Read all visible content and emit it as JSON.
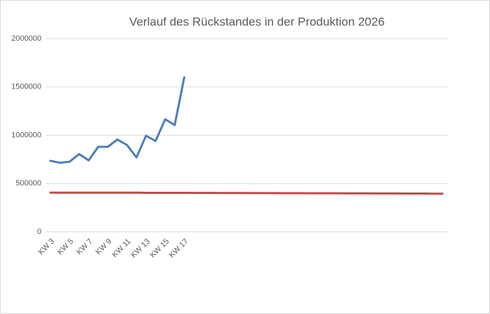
{
  "chart_data": {
    "type": "line",
    "title": "Verlauf des Rückstandes in der Produktion 2026",
    "categories": [
      "KW 3",
      null,
      "KW 5",
      null,
      "KW 7",
      null,
      "KW 9",
      null,
      "KW 11",
      null,
      "KW 13",
      null,
      "KW 15",
      null,
      "KW 17",
      null,
      null,
      null,
      null,
      null,
      null,
      null,
      null,
      null,
      null,
      null,
      null,
      null,
      null,
      null,
      null,
      null,
      null,
      null,
      null,
      null,
      null,
      null,
      null,
      null,
      null,
      null
    ],
    "series": [
      {
        "color": "#4a7ebb",
        "values": [
          735000,
          715000,
          725000,
          805000,
          740000,
          880000,
          880000,
          955000,
          900000,
          770000,
          995000,
          940000,
          1165000,
          1105000,
          1600000,
          null,
          null,
          null,
          null,
          null,
          null,
          null,
          null,
          null,
          null,
          null,
          null,
          null,
          null,
          null,
          null,
          null,
          null,
          null,
          null,
          null,
          null,
          null,
          null,
          null,
          null,
          null
        ]
      },
      {
        "color": "#be4b48",
        "values": [
          405000,
          405000,
          405000,
          405000,
          405000,
          405000,
          405000,
          405000,
          405000,
          405000,
          404000,
          404000,
          404000,
          404000,
          404000,
          403000,
          403000,
          403000,
          402000,
          402000,
          402000,
          401000,
          401000,
          401000,
          400000,
          400000,
          400000,
          399000,
          399000,
          399000,
          399000,
          398000,
          398000,
          398000,
          397000,
          397000,
          397000,
          396000,
          396000,
          396000,
          395000,
          395000
        ]
      }
    ],
    "ylim": [
      0,
      2000000
    ],
    "yticks": [
      0,
      500000,
      1000000,
      1500000,
      2000000
    ],
    "grid": true
  }
}
